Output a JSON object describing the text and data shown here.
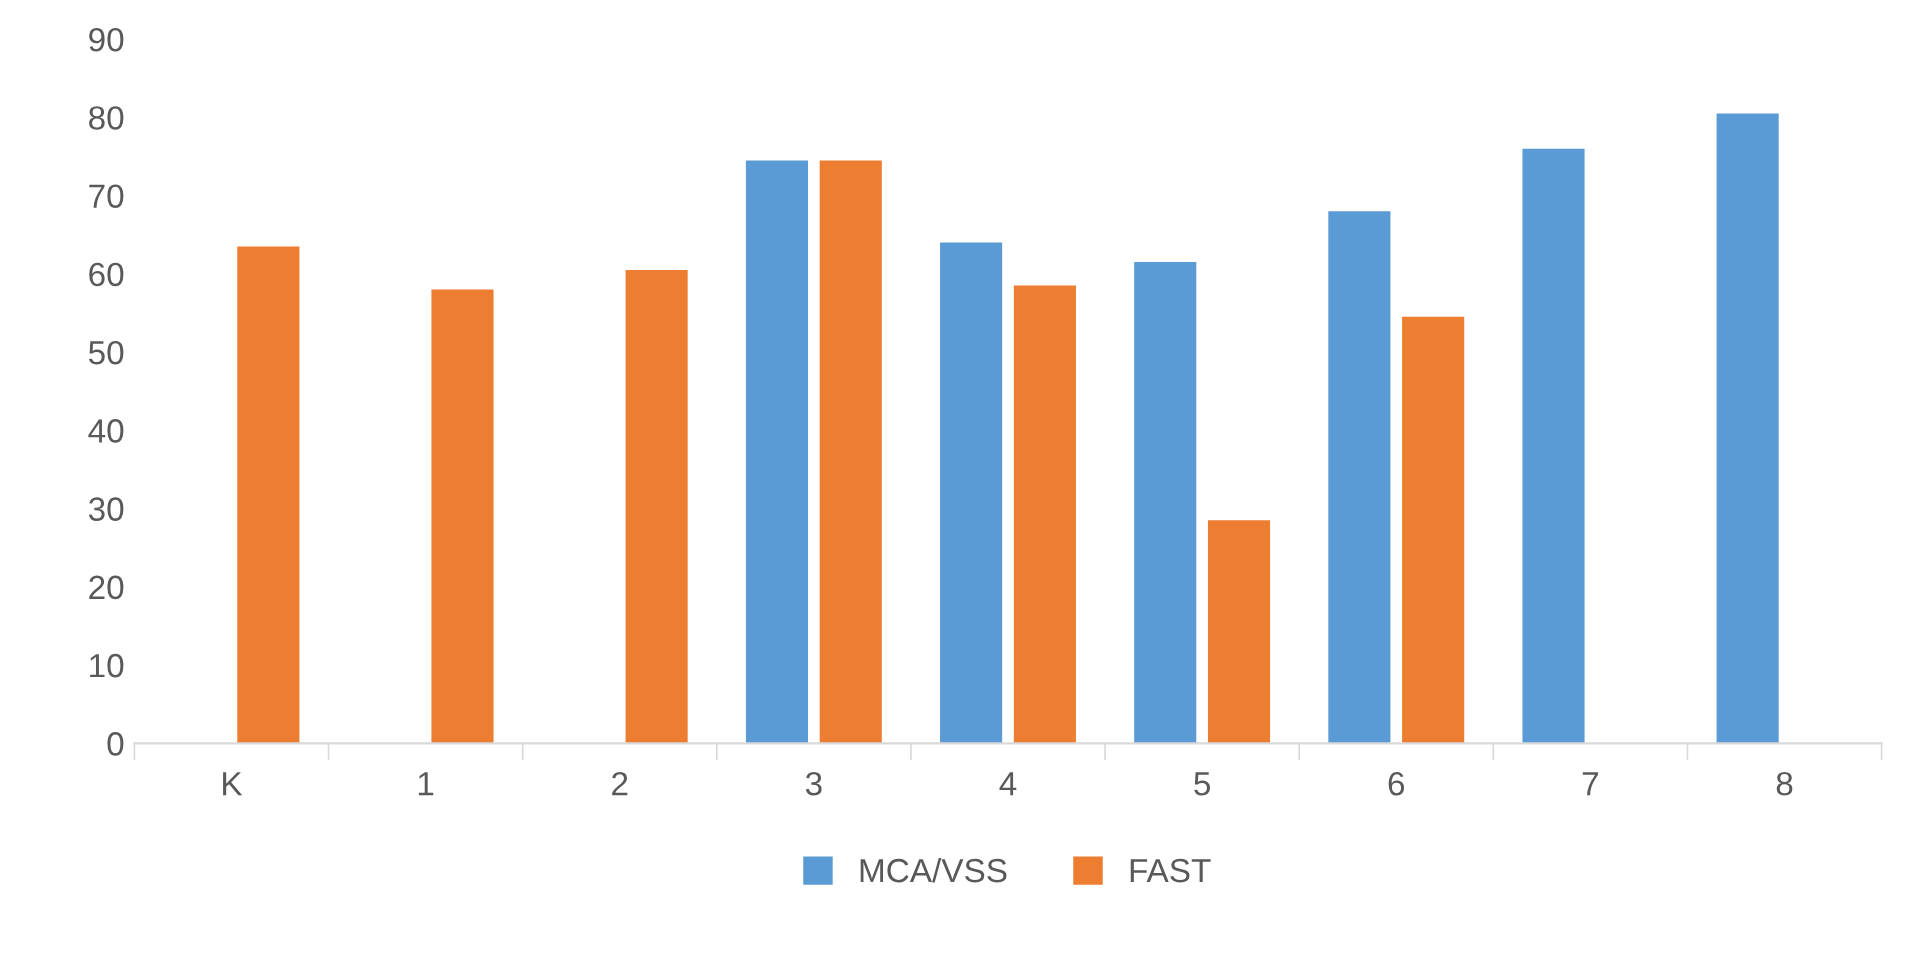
{
  "chart_data": {
    "type": "bar",
    "categories": [
      "K",
      "1",
      "2",
      "3",
      "4",
      "5",
      "6",
      "7",
      "8"
    ],
    "series": [
      {
        "name": "MCA/VSS",
        "color": "#5b9bd5",
        "values": [
          null,
          null,
          null,
          74.5,
          64,
          61.5,
          68,
          76,
          80.5
        ]
      },
      {
        "name": "FAST",
        "color": "#ed7d31",
        "values": [
          63.5,
          58,
          60.5,
          74.5,
          58.5,
          28.5,
          54.5,
          null,
          null
        ]
      }
    ],
    "ylim": [
      0,
      90
    ],
    "yticks": [
      0,
      10,
      20,
      30,
      40,
      50,
      60,
      70,
      80,
      90
    ],
    "grid": false,
    "legend": "bottom"
  }
}
